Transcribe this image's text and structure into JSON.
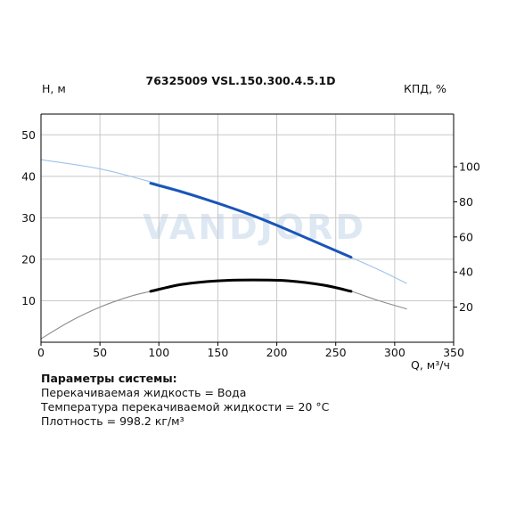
{
  "chart_data": {
    "type": "line",
    "title": "76325009 VSL.150.300.4.5.1D",
    "ylabel": "H, м",
    "y2label": "КПД, %",
    "xlabel": "Q, м³/ч",
    "xlim": [
      0,
      350
    ],
    "ylim": [
      0,
      55
    ],
    "y2lim": [
      0,
      130
    ],
    "xticks": [
      0,
      50,
      100,
      150,
      200,
      250,
      300,
      350
    ],
    "yticks": [
      10,
      20,
      30,
      40,
      50
    ],
    "y2ticks": [
      20,
      40,
      60,
      80,
      100
    ],
    "grid": true,
    "watermark": "VANDJORD",
    "series": [
      {
        "axis": "H",
        "color": "#9cc3ea",
        "points": [
          [
            0,
            44.0
          ],
          [
            50,
            41.8
          ],
          [
            95,
            38.5
          ],
          [
            130,
            35.6
          ],
          [
            180,
            30.5
          ],
          [
            230,
            24.6
          ],
          [
            265,
            20.2
          ],
          [
            290,
            17.0
          ],
          [
            310,
            14.2
          ]
        ]
      },
      {
        "axis": "H",
        "color": "#1a55b8",
        "points": [
          [
            93,
            38.3
          ],
          [
            120,
            36.2
          ],
          [
            150,
            33.5
          ],
          [
            180,
            30.5
          ],
          [
            210,
            27.0
          ],
          [
            240,
            23.3
          ],
          [
            263,
            20.5
          ]
        ]
      },
      {
        "axis": "efficiency",
        "color": "#8c8c8c",
        "points": [
          [
            0,
            2
          ],
          [
            25,
            12
          ],
          [
            50,
            20
          ],
          [
            75,
            26
          ],
          [
            93,
            29
          ],
          [
            120,
            33
          ],
          [
            150,
            35
          ],
          [
            180,
            35.5
          ],
          [
            210,
            35
          ],
          [
            240,
            32.5
          ],
          [
            263,
            29
          ],
          [
            285,
            24
          ],
          [
            310,
            19
          ]
        ]
      },
      {
        "axis": "efficiency",
        "color": "#000000",
        "points": [
          [
            93,
            29
          ],
          [
            120,
            33
          ],
          [
            150,
            35
          ],
          [
            180,
            35.5
          ],
          [
            210,
            35
          ],
          [
            240,
            32.5
          ],
          [
            263,
            29
          ]
        ]
      }
    ]
  },
  "params": {
    "title": "Параметры системы:",
    "line1": "Перекачиваемая жидкость = Вода",
    "line2": "Температура перекачиваемой жидкости = 20 °C",
    "line3": "Плотность = 998.2 кг/м³"
  }
}
